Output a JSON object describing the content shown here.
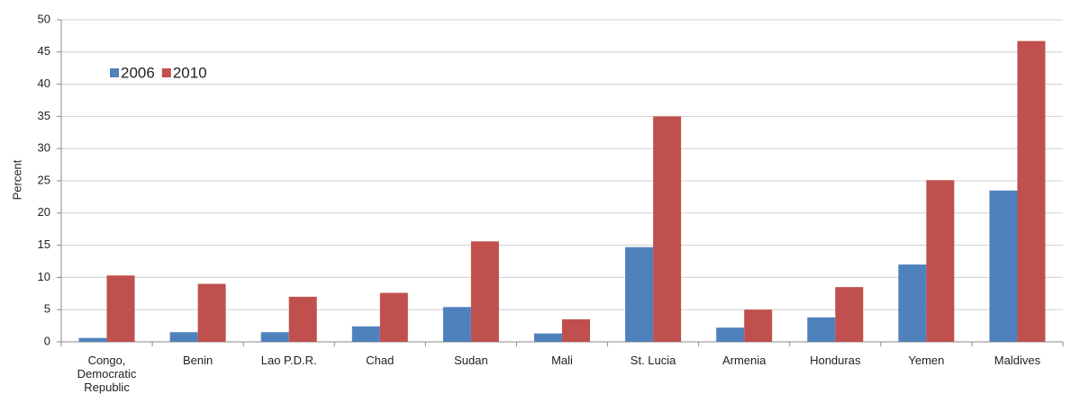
{
  "chart_data": {
    "type": "bar",
    "y_label": "Percent",
    "categories": [
      "Congo, Democratic Republic",
      "Benin",
      "Lao P.D.R.",
      "Chad",
      "Sudan",
      "Mali",
      "St. Lucia",
      "Armenia",
      "Honduras",
      "Yemen",
      "Maldives"
    ],
    "series": [
      {
        "name": "2006",
        "color": "#4f81bd",
        "values": [
          0.6,
          1.5,
          1.5,
          2.4,
          5.4,
          1.3,
          14.7,
          2.2,
          3.8,
          12,
          23.5
        ]
      },
      {
        "name": "2010",
        "color": "#c0504d",
        "values": [
          10.3,
          9,
          7,
          7.6,
          15.6,
          3.5,
          35,
          5,
          8.5,
          25.1,
          46.7
        ]
      }
    ],
    "ylim": [
      0,
      50
    ],
    "yticks": [
      0,
      5,
      10,
      15,
      20,
      25,
      30,
      35,
      40,
      45,
      50
    ],
    "grid": true,
    "legend": "top-left"
  }
}
